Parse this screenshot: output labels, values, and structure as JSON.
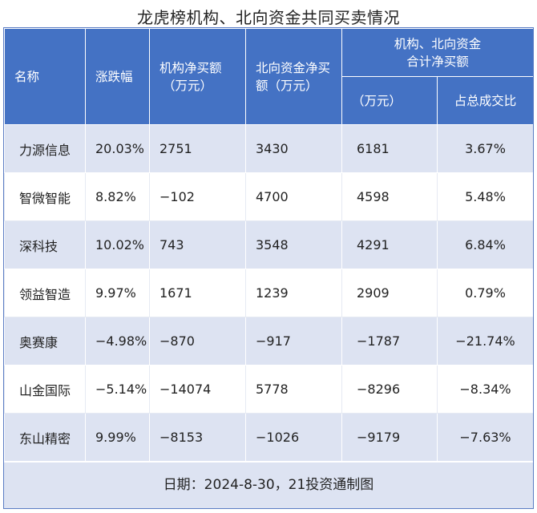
{
  "title": "龙虎榜机构、北向资金共同买卖情况",
  "headers": {
    "name": "名称",
    "change": "涨跌幅",
    "inst_net_line1": "机构净买额",
    "inst_net_line2": "（万元）",
    "north_net_line1": "北向资金净买",
    "north_net_line2": "额（万元）",
    "combined_line1": "机构、北向资金",
    "combined_line2": "合计净买额",
    "combined_unit": "（万元）",
    "combined_ratio": "占总成交比"
  },
  "rows": [
    {
      "name": "力源信息",
      "change": "20.03%",
      "inst": "2751",
      "north": "3430",
      "total": "6181",
      "ratio": "3.67%"
    },
    {
      "name": "智微智能",
      "change": "8.82%",
      "inst": "−102",
      "north": "4700",
      "total": "4598",
      "ratio": "5.48%"
    },
    {
      "name": "深科技",
      "change": "10.02%",
      "inst": "743",
      "north": "3548",
      "total": "4291",
      "ratio": "6.84%"
    },
    {
      "name": "领益智造",
      "change": "9.97%",
      "inst": "1671",
      "north": "1239",
      "total": "2909",
      "ratio": "0.79%"
    },
    {
      "name": "奥赛康",
      "change": "−4.98%",
      "inst": "−870",
      "north": "−917",
      "total": "−1787",
      "ratio": "−21.74%"
    },
    {
      "name": "山金国际",
      "change": "−5.14%",
      "inst": "−14074",
      "north": "5778",
      "total": "−8296",
      "ratio": "−8.34%"
    },
    {
      "name": "东山精密",
      "change": "9.99%",
      "inst": "−8153",
      "north": "−1026",
      "total": "−9179",
      "ratio": "−7.63%"
    }
  ],
  "footer": "日期：2024-8-30，21投资通制图"
}
